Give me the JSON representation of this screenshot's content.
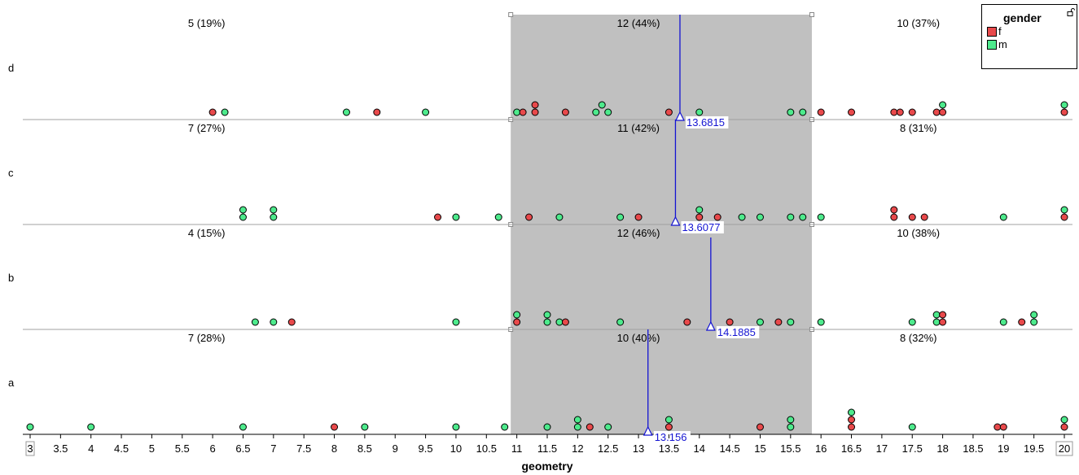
{
  "chart_data": {
    "type": "scatter",
    "subtype": "stacked dot plot by category",
    "xlabel": "geometry",
    "ylabel": "",
    "xlim": [
      3,
      20
    ],
    "x_ticks": [
      "3",
      "3.5",
      "4",
      "4.5",
      "5",
      "5.5",
      "6",
      "6.5",
      "7",
      "7.5",
      "8",
      "8.5",
      "9",
      "9.5",
      "10",
      "10.5",
      "11",
      "11.5",
      "12",
      "12.5",
      "13",
      "13.5",
      "14",
      "14.5",
      "15",
      "15.5",
      "16",
      "16.5",
      "17",
      "17.5",
      "18",
      "18.5",
      "19",
      "19.5",
      "20"
    ],
    "selection_range": [
      10.9,
      15.85
    ],
    "legend": {
      "title": "gender",
      "position": "top-right",
      "entries": [
        {
          "name": "f",
          "color": "#e8494b"
        },
        {
          "name": "m",
          "color": "#4dea8c"
        }
      ]
    },
    "panels": [
      {
        "category": "d",
        "counts": [
          "5 (19%)",
          "12 (44%)",
          "10 (37%)"
        ],
        "mean": 13.6815,
        "mean_label": "13.6815",
        "points": [
          {
            "x": 6.0,
            "g": "f",
            "level": 0
          },
          {
            "x": 6.2,
            "g": "m",
            "level": 0
          },
          {
            "x": 8.2,
            "g": "m",
            "level": 0
          },
          {
            "x": 8.7,
            "g": "f",
            "level": 0
          },
          {
            "x": 9.5,
            "g": "m",
            "level": 0
          },
          {
            "x": 11.0,
            "g": "m",
            "level": 0
          },
          {
            "x": 11.1,
            "g": "f",
            "level": 0
          },
          {
            "x": 11.3,
            "g": "f",
            "level": 0
          },
          {
            "x": 11.3,
            "g": "f",
            "level": 1
          },
          {
            "x": 11.8,
            "g": "f",
            "level": 0
          },
          {
            "x": 12.3,
            "g": "m",
            "level": 0
          },
          {
            "x": 12.4,
            "g": "m",
            "level": 1
          },
          {
            "x": 12.5,
            "g": "m",
            "level": 0
          },
          {
            "x": 13.5,
            "g": "f",
            "level": 0
          },
          {
            "x": 14.0,
            "g": "m",
            "level": 0
          },
          {
            "x": 15.5,
            "g": "m",
            "level": 0
          },
          {
            "x": 15.7,
            "g": "m",
            "level": 0
          },
          {
            "x": 16.0,
            "g": "f",
            "level": 0
          },
          {
            "x": 16.5,
            "g": "f",
            "level": 0
          },
          {
            "x": 17.2,
            "g": "f",
            "level": 0
          },
          {
            "x": 17.3,
            "g": "f",
            "level": 0
          },
          {
            "x": 17.5,
            "g": "f",
            "level": 0
          },
          {
            "x": 17.9,
            "g": "f",
            "level": 0
          },
          {
            "x": 18.0,
            "g": "f",
            "level": 0
          },
          {
            "x": 18.0,
            "g": "m",
            "level": 1
          },
          {
            "x": 20.0,
            "g": "f",
            "level": 0
          },
          {
            "x": 20.0,
            "g": "m",
            "level": 1
          }
        ]
      },
      {
        "category": "c",
        "counts": [
          "7 (27%)",
          "11 (42%)",
          "8 (31%)"
        ],
        "mean": 13.6077,
        "mean_label": "13.6077",
        "points": [
          {
            "x": 6.5,
            "g": "m",
            "level": 0
          },
          {
            "x": 6.5,
            "g": "m",
            "level": 1
          },
          {
            "x": 7.0,
            "g": "m",
            "level": 0
          },
          {
            "x": 7.0,
            "g": "m",
            "level": 1
          },
          {
            "x": 9.7,
            "g": "f",
            "level": 0
          },
          {
            "x": 10.0,
            "g": "m",
            "level": 0
          },
          {
            "x": 10.7,
            "g": "m",
            "level": 0
          },
          {
            "x": 11.2,
            "g": "f",
            "level": 0
          },
          {
            "x": 11.7,
            "g": "m",
            "level": 0
          },
          {
            "x": 12.7,
            "g": "m",
            "level": 0
          },
          {
            "x": 13.0,
            "g": "f",
            "level": 0
          },
          {
            "x": 14.0,
            "g": "f",
            "level": 0
          },
          {
            "x": 14.0,
            "g": "m",
            "level": 1
          },
          {
            "x": 14.3,
            "g": "f",
            "level": 0
          },
          {
            "x": 14.7,
            "g": "m",
            "level": 0
          },
          {
            "x": 15.0,
            "g": "m",
            "level": 0
          },
          {
            "x": 15.5,
            "g": "m",
            "level": 0
          },
          {
            "x": 15.7,
            "g": "m",
            "level": 0
          },
          {
            "x": 16.0,
            "g": "m",
            "level": 0
          },
          {
            "x": 17.2,
            "g": "f",
            "level": 0
          },
          {
            "x": 17.2,
            "g": "f",
            "level": 1
          },
          {
            "x": 17.5,
            "g": "f",
            "level": 0
          },
          {
            "x": 17.7,
            "g": "f",
            "level": 0
          },
          {
            "x": 19.0,
            "g": "m",
            "level": 0
          },
          {
            "x": 20.0,
            "g": "f",
            "level": 0
          },
          {
            "x": 20.0,
            "g": "m",
            "level": 1
          }
        ]
      },
      {
        "category": "b",
        "counts": [
          "4 (15%)",
          "12 (46%)",
          "10 (38%)"
        ],
        "mean": 14.1885,
        "mean_label": "14.1885",
        "points": [
          {
            "x": 6.7,
            "g": "m",
            "level": 0
          },
          {
            "x": 7.0,
            "g": "m",
            "level": 0
          },
          {
            "x": 7.3,
            "g": "f",
            "level": 0
          },
          {
            "x": 10.0,
            "g": "m",
            "level": 0
          },
          {
            "x": 11.0,
            "g": "f",
            "level": 0
          },
          {
            "x": 11.0,
            "g": "m",
            "level": 1
          },
          {
            "x": 11.5,
            "g": "m",
            "level": 0
          },
          {
            "x": 11.5,
            "g": "m",
            "level": 1
          },
          {
            "x": 11.7,
            "g": "m",
            "level": 0
          },
          {
            "x": 11.8,
            "g": "f",
            "level": 0
          },
          {
            "x": 12.7,
            "g": "m",
            "level": 0
          },
          {
            "x": 13.8,
            "g": "f",
            "level": 0
          },
          {
            "x": 14.5,
            "g": "f",
            "level": 0
          },
          {
            "x": 15.0,
            "g": "m",
            "level": 0
          },
          {
            "x": 15.3,
            "g": "f",
            "level": 0
          },
          {
            "x": 15.5,
            "g": "m",
            "level": 0
          },
          {
            "x": 16.0,
            "g": "m",
            "level": 0
          },
          {
            "x": 17.5,
            "g": "m",
            "level": 0
          },
          {
            "x": 17.9,
            "g": "m",
            "level": 0
          },
          {
            "x": 17.9,
            "g": "m",
            "level": 1
          },
          {
            "x": 18.0,
            "g": "f",
            "level": 0
          },
          {
            "x": 18.0,
            "g": "f",
            "level": 1
          },
          {
            "x": 19.0,
            "g": "m",
            "level": 0
          },
          {
            "x": 19.3,
            "g": "f",
            "level": 0
          },
          {
            "x": 19.5,
            "g": "m",
            "level": 0
          },
          {
            "x": 19.5,
            "g": "m",
            "level": 1
          }
        ]
      },
      {
        "category": "a",
        "counts": [
          "7 (28%)",
          "10 (40%)",
          "8 (32%)"
        ],
        "mean": 13.156,
        "mean_label": "13.156",
        "points": [
          {
            "x": 3.0,
            "g": "m",
            "level": 0
          },
          {
            "x": 4.0,
            "g": "m",
            "level": 0
          },
          {
            "x": 6.5,
            "g": "m",
            "level": 0
          },
          {
            "x": 8.0,
            "g": "f",
            "level": 0
          },
          {
            "x": 8.5,
            "g": "m",
            "level": 0
          },
          {
            "x": 10.0,
            "g": "m",
            "level": 0
          },
          {
            "x": 10.8,
            "g": "m",
            "level": 0
          },
          {
            "x": 11.5,
            "g": "m",
            "level": 0
          },
          {
            "x": 12.0,
            "g": "m",
            "level": 0
          },
          {
            "x": 12.0,
            "g": "m",
            "level": 1
          },
          {
            "x": 12.2,
            "g": "f",
            "level": 0
          },
          {
            "x": 12.5,
            "g": "m",
            "level": 0
          },
          {
            "x": 13.5,
            "g": "f",
            "level": 0
          },
          {
            "x": 13.5,
            "g": "m",
            "level": 1
          },
          {
            "x": 15.0,
            "g": "f",
            "level": 0
          },
          {
            "x": 15.5,
            "g": "m",
            "level": 0
          },
          {
            "x": 15.5,
            "g": "m",
            "level": 1
          },
          {
            "x": 16.5,
            "g": "f",
            "level": 0
          },
          {
            "x": 16.5,
            "g": "f",
            "level": 1
          },
          {
            "x": 16.5,
            "g": "m",
            "level": 2
          },
          {
            "x": 17.5,
            "g": "m",
            "level": 0
          },
          {
            "x": 18.9,
            "g": "f",
            "level": 0
          },
          {
            "x": 19.0,
            "g": "f",
            "level": 0
          },
          {
            "x": 20.0,
            "g": "f",
            "level": 0
          },
          {
            "x": 20.0,
            "g": "m",
            "level": 1
          }
        ]
      }
    ]
  }
}
